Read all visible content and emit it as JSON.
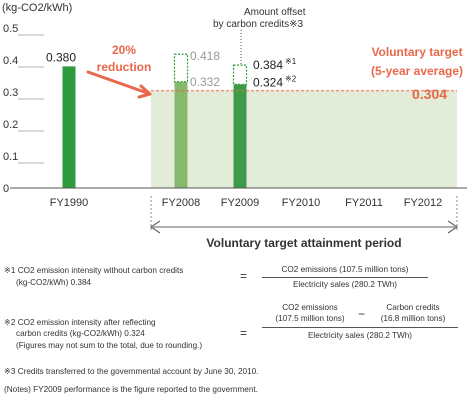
{
  "chart_data": {
    "type": "bar",
    "unit_label": "(kg-CO2/kWh)",
    "categories": [
      "FY1990",
      "FY2008",
      "FY2009",
      "FY2010",
      "FY2011",
      "FY2012"
    ],
    "bars": [
      {
        "category": "FY1990",
        "value": 0.38,
        "label": "0.380",
        "color": "#2e9c3c"
      },
      {
        "category": "FY2008",
        "value": 0.332,
        "label": "0.332",
        "color": "#86b86d",
        "offset_top": 0.418,
        "offset_top_label": "0.418"
      },
      {
        "category": "FY2009",
        "value": 0.324,
        "label": "0.324",
        "label_mark": "※2",
        "color": "#3e9a48",
        "offset_top": 0.384,
        "offset_top_label": "0.384",
        "offset_top_mark": "※1"
      }
    ],
    "yticks": [
      "0",
      "0.1",
      "0.2",
      "0.3",
      "0.4",
      "0.5"
    ],
    "ylim": [
      0,
      0.5
    ],
    "target": {
      "value": 0.304,
      "label": "0.304",
      "title_line1": "Voluntary target",
      "title_line2": "(5-year average)",
      "color": "#e8684a"
    },
    "reduction_label_line1": "20%",
    "reduction_label_line2": "reduction",
    "offset_note_line1": "Amount offset",
    "offset_note_line2": "by carbon credits※3",
    "period_label": "Voluntary target attainment period"
  },
  "notes": {
    "n1_line1": "※1  CO2 emission intensity without carbon credits",
    "n1_line2": "(kg-CO2/kWh) 0.384",
    "n1_num": "CO2 emissions (107.5 million tons)",
    "n1_den": "Electricity sales (280.2 TWh)",
    "n2_line1": "※2  CO2 emission intensity after reflecting",
    "n2_line2": "carbon credits (kg-CO2/kWh) 0.324",
    "n2_line3": "(Figures may not sum to the total, due to rounding.)",
    "n2_numA_line1": "CO2 emissions",
    "n2_numA_line2": "(107.5 million tons)",
    "n2_numB_line1": "Carbon credits",
    "n2_numB_line2": "(16.8 million tons)",
    "n2_den": "Electricity sales (280.2 TWh)",
    "eq": "=",
    "minus": "−",
    "n3": "※3  Credits transferred to the governmental account by June 30, 2010.",
    "n4": "(Notes) FY2009 performance is the figure reported to the government."
  }
}
